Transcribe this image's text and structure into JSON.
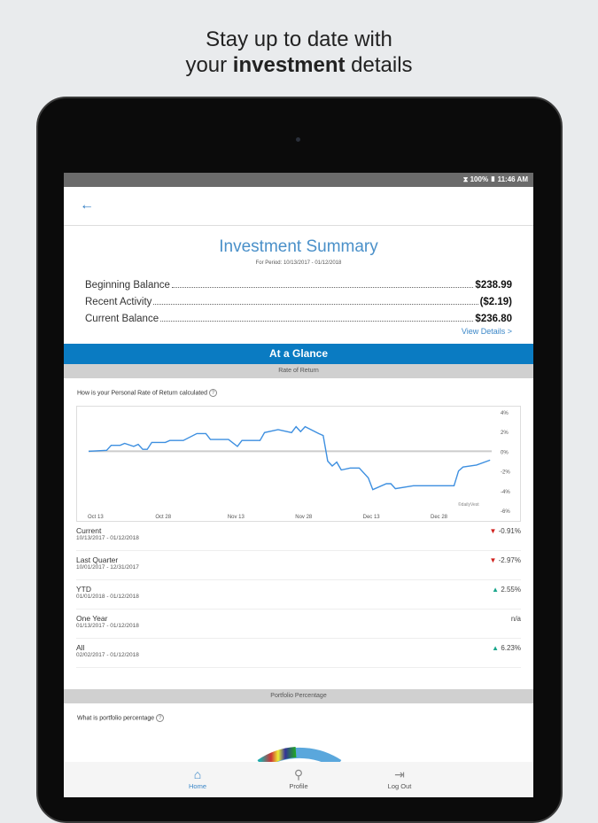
{
  "promo": {
    "line1": "Stay up to date with",
    "line2_prefix": "your ",
    "line2_bold": "investment",
    "line2_suffix": " details"
  },
  "status_bar": {
    "text": "⧗ 100% ▮ 11:46 AM"
  },
  "summary": {
    "title": "Investment Summary",
    "period": "For Period: 10/13/2017 - 01/12/2018",
    "rows": [
      {
        "label": "Beginning Balance",
        "value": "$238.99"
      },
      {
        "label": "Recent Activity",
        "value": "($2.19)"
      },
      {
        "label": "Current Balance",
        "value": "$236.80"
      }
    ],
    "view_details": "View Details >"
  },
  "glance": {
    "title": "At a Glance",
    "rate_section": "Rate of Return",
    "rate_question": "How is your Personal Rate of Return calculated",
    "portfolio_section": "Portfolio Percentage",
    "portfolio_question": "What is portfolio percentage"
  },
  "chart_data": {
    "type": "line",
    "credit": "©dailyVest",
    "x_ticks": [
      "Oct 13",
      "Oct 28",
      "Nov 13",
      "Nov 28",
      "Dec 13",
      "Dec 28"
    ],
    "x_tick_dates": [
      "2017-10-13",
      "2017-10-28",
      "2017-11-13",
      "2017-11-28",
      "2017-12-13",
      "2017-12-28"
    ],
    "y_ticks": [
      "4%",
      "2%",
      "0%",
      "-2%",
      "-4%",
      "-6%"
    ],
    "ylim": [
      -6,
      4
    ],
    "color": "#3d8fe0",
    "points": [
      [
        "2017-10-13",
        0
      ],
      [
        "2017-10-17",
        0.1
      ],
      [
        "2017-10-18",
        0.6
      ],
      [
        "2017-10-20",
        0.6
      ],
      [
        "2017-10-21",
        0.8
      ],
      [
        "2017-10-23",
        0.5
      ],
      [
        "2017-10-24",
        0.7
      ],
      [
        "2017-10-25",
        0.2
      ],
      [
        "2017-10-26",
        0.2
      ],
      [
        "2017-10-27",
        0.9
      ],
      [
        "2017-10-30",
        0.9
      ],
      [
        "2017-10-31",
        1.1
      ],
      [
        "2017-11-03",
        1.1
      ],
      [
        "2017-11-06",
        1.8
      ],
      [
        "2017-11-08",
        1.8
      ],
      [
        "2017-11-09",
        1.2
      ],
      [
        "2017-11-13",
        1.2
      ],
      [
        "2017-11-15",
        0.5
      ],
      [
        "2017-11-16",
        1.1
      ],
      [
        "2017-11-20",
        1.1
      ],
      [
        "2017-11-21",
        1.9
      ],
      [
        "2017-11-24",
        2.2
      ],
      [
        "2017-11-27",
        1.9
      ],
      [
        "2017-11-28",
        2.5
      ],
      [
        "2017-11-29",
        2.0
      ],
      [
        "2017-11-30",
        2.5
      ],
      [
        "2017-12-03",
        1.8
      ],
      [
        "2017-12-04",
        1.6
      ],
      [
        "2017-12-05",
        -1.0
      ],
      [
        "2017-12-06",
        -1.5
      ],
      [
        "2017-12-07",
        -1.1
      ],
      [
        "2017-12-08",
        -1.9
      ],
      [
        "2017-12-10",
        -1.7
      ],
      [
        "2017-12-12",
        -1.7
      ],
      [
        "2017-12-14",
        -2.7
      ],
      [
        "2017-12-15",
        -3.9
      ],
      [
        "2017-12-18",
        -3.3
      ],
      [
        "2017-12-19",
        -3.3
      ],
      [
        "2017-12-20",
        -3.8
      ],
      [
        "2017-12-24",
        -3.5
      ],
      [
        "2018-01-02",
        -3.5
      ],
      [
        "2018-01-03",
        -2.0
      ],
      [
        "2018-01-04",
        -1.6
      ],
      [
        "2018-01-07",
        -1.4
      ],
      [
        "2018-01-10",
        -0.9
      ]
    ]
  },
  "returns": [
    {
      "name": "Current",
      "dates": "10/13/2017 - 01/12/2018",
      "value": "-0.91%",
      "trend": "down"
    },
    {
      "name": "Last Quarter",
      "dates": "10/01/2017 - 12/31/2017",
      "value": "-2.97%",
      "trend": "down"
    },
    {
      "name": "YTD",
      "dates": "01/01/2018 - 01/12/2018",
      "value": "2.55%",
      "trend": "up"
    },
    {
      "name": "One Year",
      "dates": "01/13/2017 - 01/12/2018",
      "value": "n/a",
      "trend": "none"
    },
    {
      "name": "All",
      "dates": "02/02/2017 - 01/12/2018",
      "value": "6.23%",
      "trend": "up"
    }
  ],
  "nav": [
    {
      "label": "Home",
      "icon": "home-icon"
    },
    {
      "label": "Profile",
      "icon": "profile-icon"
    },
    {
      "label": "Log Out",
      "icon": "logout-icon"
    }
  ]
}
